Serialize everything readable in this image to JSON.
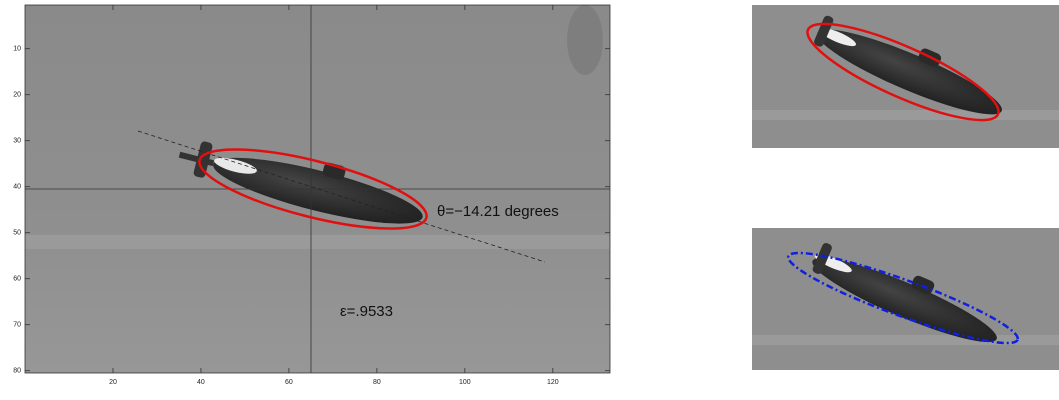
{
  "chart_data": {
    "type": "image",
    "xlim": [
      0,
      133
    ],
    "ylim": [
      0.5,
      80.5
    ],
    "xticks": [
      20,
      40,
      60,
      80,
      100,
      120
    ],
    "yticks": [
      10,
      20,
      30,
      40,
      50,
      60,
      70,
      80
    ],
    "annotations": [
      "θ=−14.21 degrees",
      "ε=.9533"
    ]
  }
}
